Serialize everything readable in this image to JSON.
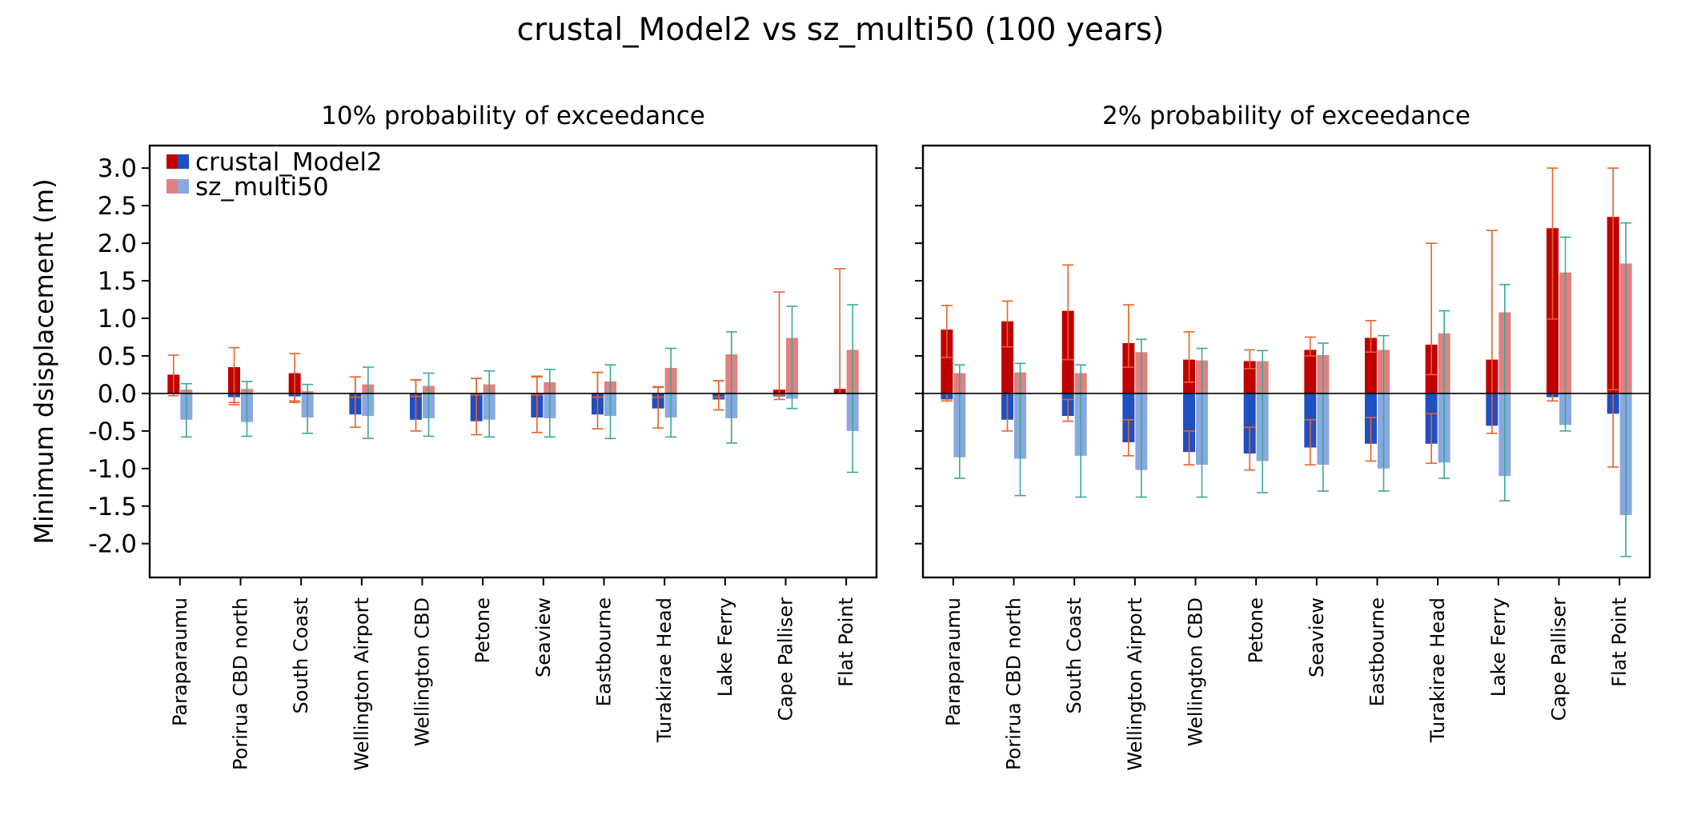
{
  "chart_data": {
    "type": "bar",
    "title": "crustal_Model2 vs sz_multi50 (100 years)",
    "ylabel": "Minimum dsisplacement (m)",
    "ylim": [
      -2.45,
      3.3
    ],
    "yticks": [
      3.0,
      2.5,
      2.0,
      1.5,
      1.0,
      0.5,
      0.0,
      -0.5,
      -1.0,
      -1.5,
      -2.0
    ],
    "ytick_labels": [
      "3.0",
      "2.5",
      "2.0",
      "1.5",
      "1.0",
      "0.5",
      "0.0",
      "-0.5",
      "-1.0",
      "-1.5",
      "-2.0"
    ],
    "categories": [
      "Paraparaumu",
      "Porirua CBD north",
      "South Coast",
      "Wellington Airport",
      "Wellington CBD",
      "Petone",
      "Seaview",
      "Eastbourne",
      "Turakirae Head",
      "Lake Ferry",
      "Cape Palliser",
      "Flat Point"
    ],
    "legend": {
      "placement": "upper-left",
      "entries": [
        {
          "name": "crustal_Model2",
          "colors": [
            "#c00000",
            "#1f4fc1"
          ]
        },
        {
          "name": "sz_multi50",
          "colors": [
            "#e08080",
            "#8aa8e0"
          ]
        }
      ]
    },
    "colors": {
      "crustal_up": "#c00000",
      "crustal_down": "#1f4fc1",
      "sz_up": "#e08080",
      "sz_down": "#8aa8e0",
      "crustal_error": "#e8622a",
      "sz_error": "#3aa89a",
      "zero_line": "#000000"
    },
    "panels": [
      {
        "title": "10% probability of exceedance",
        "series": [
          {
            "name": "crustal_Model2",
            "up": [
              0.25,
              0.35,
              0.27,
              0.0,
              0.0,
              0.0,
              0.0,
              0.0,
              0.0,
              0.0,
              0.05,
              0.06
            ],
            "up_err": [
              [
                -0.03,
                0.51
              ],
              [
                -0.12,
                0.61
              ],
              [
                -0.1,
                0.53
              ],
              [
                -0.05,
                0.22
              ],
              [
                -0.04,
                0.18
              ],
              [
                -0.02,
                0.2
              ],
              [
                -0.02,
                0.23
              ],
              [
                -0.05,
                0.28
              ],
              [
                -0.05,
                0.08
              ],
              [
                -0.05,
                0.17
              ],
              [
                -0.02,
                1.35
              ],
              [
                0.0,
                1.66
              ]
            ],
            "down": [
              0.0,
              -0.05,
              -0.04,
              -0.28,
              -0.35,
              -0.37,
              -0.32,
              -0.28,
              -0.2,
              -0.08,
              -0.04,
              0.0
            ],
            "down_err": [
              [
                0.0,
                0.0
              ],
              [
                -0.15,
                0.0
              ],
              [
                -0.12,
                0.0
              ],
              [
                -0.45,
                0.22
              ],
              [
                -0.5,
                0.18
              ],
              [
                -0.55,
                0.2
              ],
              [
                -0.52,
                0.22
              ],
              [
                -0.47,
                0.28
              ],
              [
                -0.46,
                0.09
              ],
              [
                -0.22,
                0.17
              ],
              [
                -0.08,
                0.0
              ],
              [
                0.0,
                0.0
              ]
            ]
          },
          {
            "name": "sz_multi50",
            "up": [
              0.05,
              0.06,
              0.03,
              0.12,
              0.1,
              0.12,
              0.15,
              0.16,
              0.34,
              0.52,
              0.74,
              0.58
            ],
            "up_err": [
              [
                0.0,
                0.13
              ],
              [
                0.0,
                0.16
              ],
              [
                0.0,
                0.12
              ],
              [
                0.0,
                0.35
              ],
              [
                0.0,
                0.27
              ],
              [
                0.0,
                0.3
              ],
              [
                0.0,
                0.32
              ],
              [
                0.0,
                0.38
              ],
              [
                0.0,
                0.6
              ],
              [
                0.0,
                0.82
              ],
              [
                0.0,
                1.16
              ],
              [
                0.0,
                1.18
              ]
            ],
            "down": [
              -0.35,
              -0.38,
              -0.32,
              -0.3,
              -0.33,
              -0.35,
              -0.33,
              -0.3,
              -0.32,
              -0.33,
              -0.07,
              -0.5
            ],
            "down_err": [
              [
                -0.58,
                0.0
              ],
              [
                -0.57,
                0.0
              ],
              [
                -0.53,
                0.0
              ],
              [
                -0.6,
                0.0
              ],
              [
                -0.57,
                0.0
              ],
              [
                -0.58,
                0.0
              ],
              [
                -0.58,
                0.0
              ],
              [
                -0.6,
                0.0
              ],
              [
                -0.58,
                0.0
              ],
              [
                -0.66,
                0.0
              ],
              [
                -0.2,
                0.0
              ],
              [
                -1.05,
                0.0
              ]
            ]
          }
        ]
      },
      {
        "title": "2% probability of exceedance",
        "series": [
          {
            "name": "crustal_Model2",
            "up": [
              0.85,
              0.96,
              1.1,
              0.67,
              0.45,
              0.43,
              0.58,
              0.74,
              0.65,
              0.45,
              2.2,
              2.35
            ],
            "up_err": [
              [
                0.48,
                1.17
              ],
              [
                0.62,
                1.23
              ],
              [
                0.45,
                1.71
              ],
              [
                0.35,
                1.18
              ],
              [
                0.15,
                0.82
              ],
              [
                0.33,
                0.58
              ],
              [
                0.5,
                0.75
              ],
              [
                0.55,
                0.97
              ],
              [
                0.25,
                2.0
              ],
              [
                0.0,
                2.17
              ],
              [
                0.99,
                3.0
              ],
              [
                0.05,
                3.0
              ]
            ],
            "down": [
              -0.08,
              -0.35,
              -0.3,
              -0.65,
              -0.78,
              -0.8,
              -0.72,
              -0.67,
              -0.67,
              -0.43,
              -0.05,
              -0.27
            ],
            "down_err": [
              [
                -0.1,
                0.0
              ],
              [
                -0.5,
                0.0
              ],
              [
                -0.37,
                -0.08
              ],
              [
                -0.83,
                -0.35
              ],
              [
                -0.95,
                -0.5
              ],
              [
                -1.02,
                -0.45
              ],
              [
                -0.95,
                -0.35
              ],
              [
                -0.9,
                -0.32
              ],
              [
                -0.93,
                -0.27
              ],
              [
                -0.53,
                0.0
              ],
              [
                -0.1,
                0.0
              ],
              [
                -0.98,
                0.0
              ]
            ]
          },
          {
            "name": "sz_multi50",
            "up": [
              0.27,
              0.28,
              0.27,
              0.55,
              0.44,
              0.43,
              0.51,
              0.58,
              0.8,
              1.08,
              1.61,
              1.73
            ],
            "up_err": [
              [
                0.0,
                0.38
              ],
              [
                0.0,
                0.4
              ],
              [
                0.0,
                0.38
              ],
              [
                0.0,
                0.72
              ],
              [
                0.0,
                0.6
              ],
              [
                0.0,
                0.57
              ],
              [
                0.0,
                0.67
              ],
              [
                0.0,
                0.77
              ],
              [
                0.0,
                1.1
              ],
              [
                0.0,
                1.45
              ],
              [
                0.0,
                2.08
              ],
              [
                0.0,
                2.27
              ]
            ],
            "down": [
              -0.85,
              -0.87,
              -0.83,
              -1.02,
              -0.95,
              -0.9,
              -0.95,
              -1.0,
              -0.92,
              -1.1,
              -0.42,
              -1.62
            ],
            "down_err": [
              [
                -1.13,
                0.0
              ],
              [
                -1.36,
                0.0
              ],
              [
                -1.38,
                0.0
              ],
              [
                -1.38,
                0.0
              ],
              [
                -1.38,
                0.0
              ],
              [
                -1.32,
                0.0
              ],
              [
                -1.3,
                0.0
              ],
              [
                -1.3,
                0.0
              ],
              [
                -1.13,
                0.0
              ],
              [
                -1.43,
                0.0
              ],
              [
                -0.5,
                0.0
              ],
              [
                -2.17,
                0.0
              ]
            ]
          }
        ]
      }
    ]
  }
}
